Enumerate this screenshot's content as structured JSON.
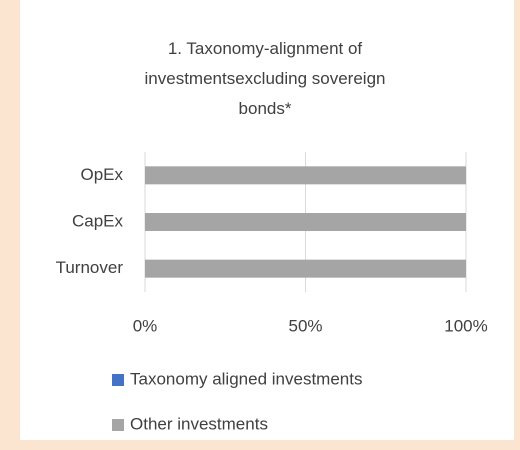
{
  "chart_data": {
    "type": "stacked-bar-horizontal",
    "title": "1. Taxonomy-alignment of investmentsexcluding sovereign bonds*",
    "categories": [
      "OpEx",
      "CapEx",
      "Turnover"
    ],
    "series": [
      {
        "name": "Taxonomy aligned investments",
        "color": "#4472c4",
        "values": [
          0,
          0,
          0
        ]
      },
      {
        "name": "Other investments",
        "color": "#a5a5a5",
        "values": [
          100,
          100,
          100
        ]
      }
    ],
    "xlim": [
      0,
      100
    ],
    "xticks": [
      {
        "value": 0,
        "label": "0%"
      },
      {
        "value": 50,
        "label": "50%"
      },
      {
        "value": 100,
        "label": "100%"
      }
    ],
    "grid": true,
    "legend": "bottom"
  }
}
